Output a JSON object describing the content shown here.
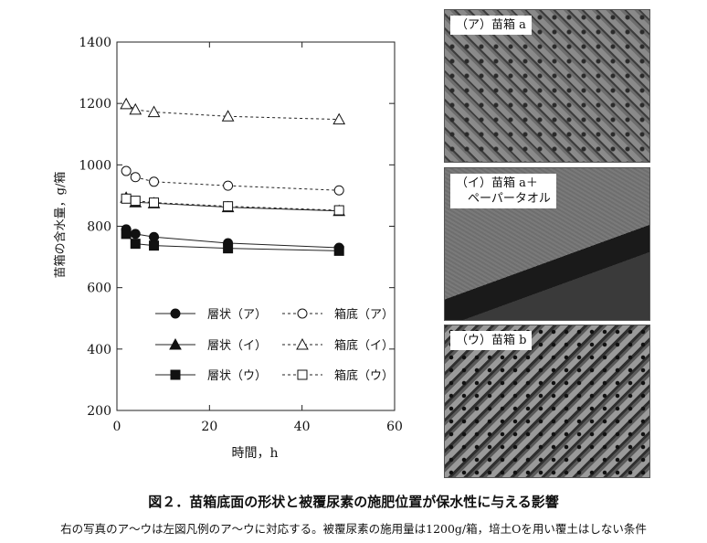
{
  "chart_data": {
    "type": "line",
    "xlabel": "時間，h",
    "ylabel": "苗箱の含水量，g/箱",
    "xlim": [
      0,
      60
    ],
    "ylim": [
      200,
      1400
    ],
    "xticks": [
      0,
      20,
      40,
      60
    ],
    "yticks": [
      200,
      400,
      600,
      800,
      1000,
      1200,
      1400
    ],
    "x": [
      2,
      4,
      8,
      24,
      48
    ],
    "legend_position": "lower-left",
    "series": [
      {
        "name": "層状（ア）",
        "marker": "circle",
        "fill": "filled",
        "dash": "solid",
        "values": [
          790,
          775,
          765,
          745,
          730
        ]
      },
      {
        "name": "層状（イ）",
        "marker": "triangle",
        "fill": "filled",
        "dash": "solid",
        "values": [
          893,
          878,
          875,
          862,
          850
        ]
      },
      {
        "name": "層状（ウ）",
        "marker": "square",
        "fill": "filled",
        "dash": "solid",
        "values": [
          775,
          743,
          737,
          728,
          720
        ]
      },
      {
        "name": "箱底（ア）",
        "marker": "circle",
        "fill": "open",
        "dash": "dashed",
        "values": [
          980,
          960,
          945,
          932,
          917
        ]
      },
      {
        "name": "箱底（イ）",
        "marker": "triangle",
        "fill": "open",
        "dash": "dashed",
        "values": [
          1198,
          1180,
          1172,
          1158,
          1148
        ]
      },
      {
        "name": "箱底（ウ）",
        "marker": "square",
        "fill": "open",
        "dash": "dashed",
        "values": [
          890,
          883,
          877,
          865,
          852
        ]
      }
    ]
  },
  "photos": {
    "a": {
      "label": "（ア）苗箱 a",
      "icon": "tray-with-pyramid-cells"
    },
    "b": {
      "label": "（イ）苗箱 a＋\n　ペーパータオル",
      "icon": "tray-covered-with-paper-towel"
    },
    "c": {
      "label": "（ウ）苗箱 b",
      "icon": "tray-with-slotted-ribs"
    }
  },
  "caption": {
    "title": "図２．苗箱底面の形状と被覆尿素の施肥位置が保水性に与える影響",
    "note": "右の写真のア〜ウは左図凡例のア〜ウに対応する。被覆尿素の施用量は1200g/箱，培土Oを用い覆土はしない条件"
  }
}
